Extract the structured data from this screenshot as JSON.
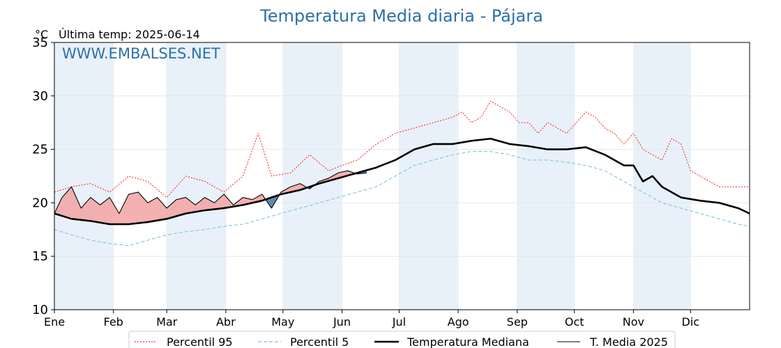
{
  "chart_data": {
    "type": "line",
    "title": "Temperatura Media diaria - Pájara",
    "unit_label": "°C",
    "last_reading": "Última temp: 2025-06-14",
    "watermark": "WWW.EMBALSES.NET",
    "ylim": [
      10,
      35
    ],
    "yticks": [
      10,
      15,
      20,
      25,
      30,
      35
    ],
    "xlim": [
      1,
      366
    ],
    "month_labels": [
      "Ene",
      "Feb",
      "Mar",
      "Abr",
      "May",
      "Jun",
      "Jul",
      "Ago",
      "Sep",
      "Oct",
      "Nov",
      "Dic"
    ],
    "month_start_days": [
      1,
      32,
      60,
      91,
      121,
      152,
      182,
      213,
      244,
      274,
      305,
      335
    ],
    "shaded_months": [
      0,
      2,
      4,
      6,
      8,
      10
    ],
    "grid": true,
    "legend_position": "bottom",
    "colors": {
      "p95": "#ff0000",
      "p5": "#7ec3de",
      "median": "#000000",
      "media2025": "#000000",
      "above_fill": "#f2a3a3",
      "below_fill": "#4d7fa8",
      "band": "#e8f1f9",
      "title": "#2e6fa5"
    },
    "series": [
      {
        "name": "Percentil 95",
        "style": "dotted-red",
        "x": [
          1,
          10,
          20,
          30,
          40,
          50,
          60,
          70,
          80,
          90,
          100,
          108,
          115,
          125,
          135,
          145,
          152,
          160,
          170,
          180,
          190,
          200,
          210,
          215,
          220,
          225,
          230,
          235,
          240,
          245,
          250,
          255,
          260,
          265,
          270,
          275,
          280,
          285,
          290,
          295,
          300,
          305,
          310,
          315,
          320,
          325,
          330,
          335,
          340,
          350,
          360,
          366
        ],
        "y": [
          21,
          21.5,
          21.8,
          21,
          22.5,
          22,
          20.5,
          22.5,
          22,
          21,
          22.5,
          26.5,
          22.5,
          22.8,
          24.5,
          23,
          23.5,
          24,
          25.5,
          26.5,
          27,
          27.5,
          28,
          28.5,
          27.5,
          28,
          29.5,
          29,
          28.5,
          27.5,
          27.5,
          26.5,
          27.5,
          27,
          26.5,
          27.5,
          28.5,
          28,
          27,
          26.5,
          25.5,
          26.5,
          25,
          24.5,
          24,
          26,
          25.5,
          23,
          22.5,
          21.5,
          21.5,
          21.5
        ]
      },
      {
        "name": "Percentil 5",
        "style": "dashed-lightblue",
        "x": [
          1,
          10,
          20,
          30,
          40,
          50,
          60,
          70,
          80,
          90,
          100,
          110,
          120,
          130,
          140,
          150,
          160,
          170,
          180,
          190,
          200,
          210,
          220,
          230,
          240,
          250,
          260,
          270,
          280,
          290,
          300,
          310,
          320,
          330,
          340,
          350,
          360,
          366
        ],
        "y": [
          17.5,
          17,
          16.5,
          16.2,
          16,
          16.5,
          17,
          17.3,
          17.5,
          17.8,
          18,
          18.5,
          19,
          19.5,
          20,
          20.5,
          21,
          21.5,
          22.5,
          23.5,
          24,
          24.5,
          24.8,
          24.8,
          24.5,
          24,
          24,
          23.8,
          23.5,
          23,
          22,
          21,
          20,
          19.5,
          19,
          18.5,
          18,
          17.8
        ]
      },
      {
        "name": "Temperatura Mediana",
        "style": "thick-black",
        "x": [
          1,
          10,
          20,
          30,
          40,
          50,
          60,
          70,
          80,
          90,
          100,
          110,
          120,
          130,
          140,
          150,
          160,
          170,
          180,
          190,
          200,
          210,
          220,
          230,
          240,
          250,
          260,
          270,
          280,
          290,
          300,
          305,
          310,
          315,
          320,
          330,
          340,
          350,
          360,
          366
        ],
        "y": [
          19,
          18.5,
          18.3,
          18,
          18,
          18.2,
          18.5,
          19,
          19.3,
          19.5,
          19.8,
          20.2,
          20.8,
          21.2,
          21.8,
          22.3,
          22.8,
          23.3,
          24,
          25,
          25.5,
          25.5,
          25.8,
          26,
          25.5,
          25.3,
          25,
          25,
          25.2,
          24.5,
          23.5,
          23.5,
          22,
          22.5,
          21.5,
          20.5,
          20.2,
          20,
          19.5,
          19
        ]
      },
      {
        "name": "T. Media 2025",
        "style": "thin-black",
        "x": [
          1,
          5,
          10,
          15,
          20,
          25,
          30,
          35,
          40,
          45,
          50,
          55,
          60,
          65,
          70,
          75,
          80,
          85,
          90,
          95,
          100,
          105,
          110,
          115,
          120,
          125,
          130,
          135,
          140,
          145,
          150,
          155,
          160,
          165
        ],
        "y": [
          19,
          20.5,
          21.5,
          19.5,
          20.5,
          19.8,
          20.5,
          19,
          20.8,
          21,
          20,
          20.5,
          19.5,
          20.3,
          20.5,
          19.8,
          20.5,
          20,
          20.8,
          19.8,
          20.5,
          20.3,
          20.8,
          19.5,
          21,
          21.5,
          21.8,
          21.3,
          22,
          22.3,
          22.8,
          23,
          22.7,
          22.8
        ]
      }
    ]
  }
}
